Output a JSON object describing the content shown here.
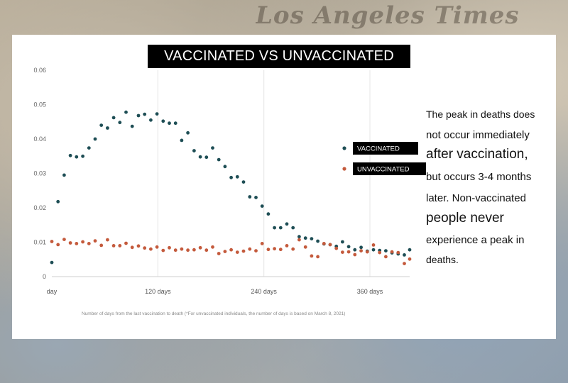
{
  "background": {
    "masthead": "Los Angeles Times"
  },
  "chart_data": {
    "type": "scatter",
    "title": "VACCINATED VS UNVACCINATED",
    "xlabel": "Number of days from the last vaccination to death (*For unvaccinated individuals, the number of days is based on March 8, 2021)",
    "ylabel": "",
    "xlim": [
      0,
      405
    ],
    "ylim": [
      0,
      0.06
    ],
    "x_ticks": [
      {
        "value": 0,
        "label": "day"
      },
      {
        "value": 120,
        "label": "120 days"
      },
      {
        "value": 240,
        "label": "240 days"
      },
      {
        "value": 360,
        "label": "360 days"
      }
    ],
    "y_ticks": [
      {
        "value": 0,
        "label": "0"
      },
      {
        "value": 0.01,
        "label": "0.01"
      },
      {
        "value": 0.02,
        "label": "0.02"
      },
      {
        "value": 0.03,
        "label": "0.03"
      },
      {
        "value": 0.04,
        "label": "0.04"
      },
      {
        "value": 0.05,
        "label": "0.05"
      },
      {
        "value": 0.06,
        "label": "0.06"
      }
    ],
    "grid": "vertical",
    "legend_position": "right",
    "series": [
      {
        "name": "VACCINATED",
        "color": "#1e4e55",
        "x": [
          0,
          7,
          14,
          21,
          28,
          35,
          42,
          49,
          56,
          63,
          70,
          77,
          84,
          91,
          98,
          105,
          112,
          119,
          126,
          133,
          140,
          147,
          154,
          161,
          168,
          175,
          182,
          189,
          196,
          203,
          210,
          217,
          224,
          231,
          238,
          245,
          252,
          259,
          266,
          273,
          280,
          287,
          294,
          301,
          308,
          315,
          322,
          329,
          336,
          343,
          350,
          357,
          364,
          371,
          378,
          385,
          392,
          399,
          405
        ],
        "y": [
          0.0041,
          0.0218,
          0.0295,
          0.0352,
          0.0348,
          0.035,
          0.0374,
          0.04,
          0.044,
          0.0432,
          0.0462,
          0.0448,
          0.0478,
          0.0437,
          0.0468,
          0.0472,
          0.0455,
          0.0473,
          0.0452,
          0.0446,
          0.0446,
          0.0396,
          0.0418,
          0.0366,
          0.0348,
          0.0347,
          0.0374,
          0.034,
          0.032,
          0.0288,
          0.029,
          0.0275,
          0.0232,
          0.023,
          0.0205,
          0.0182,
          0.0142,
          0.0142,
          0.0153,
          0.0142,
          0.0116,
          0.0112,
          0.011,
          0.0103,
          0.0095,
          0.0093,
          0.0088,
          0.0101,
          0.0087,
          0.0078,
          0.0085,
          0.0074,
          0.0078,
          0.0076,
          0.0075,
          0.0069,
          0.0066,
          0.0063,
          0.0078
        ]
      },
      {
        "name": "UNVACCINATED",
        "color": "#c45a3c",
        "x": [
          0,
          7,
          14,
          21,
          28,
          35,
          42,
          49,
          56,
          63,
          70,
          77,
          84,
          91,
          98,
          105,
          112,
          119,
          126,
          133,
          140,
          147,
          154,
          161,
          168,
          175,
          182,
          189,
          196,
          203,
          210,
          217,
          224,
          231,
          238,
          245,
          252,
          259,
          266,
          273,
          280,
          287,
          294,
          301,
          308,
          315,
          322,
          329,
          336,
          343,
          350,
          357,
          364,
          371,
          378,
          385,
          392,
          399,
          405
        ],
        "y": [
          0.0102,
          0.0093,
          0.0108,
          0.0098,
          0.0096,
          0.0101,
          0.0096,
          0.0104,
          0.0091,
          0.0107,
          0.009,
          0.009,
          0.0097,
          0.0085,
          0.0089,
          0.0083,
          0.008,
          0.0086,
          0.0076,
          0.0084,
          0.0077,
          0.008,
          0.0077,
          0.0078,
          0.0084,
          0.0077,
          0.0086,
          0.0067,
          0.0073,
          0.0078,
          0.0071,
          0.0074,
          0.008,
          0.0075,
          0.0096,
          0.0079,
          0.0081,
          0.0079,
          0.009,
          0.008,
          0.0107,
          0.0086,
          0.006,
          0.0058,
          0.0096,
          0.0093,
          0.0082,
          0.0071,
          0.0072,
          0.0064,
          0.0075,
          0.0072,
          0.0092,
          0.007,
          0.0058,
          0.0072,
          0.007,
          0.0038,
          0.0051
        ]
      }
    ]
  },
  "side_note": {
    "lines": [
      "The peak in deaths does",
      "not occur immediately",
      "after vaccination,",
      "but occurs 3-4 months",
      "later. Non-vaccinated",
      "people never",
      "experience a peak in",
      "deaths."
    ]
  }
}
